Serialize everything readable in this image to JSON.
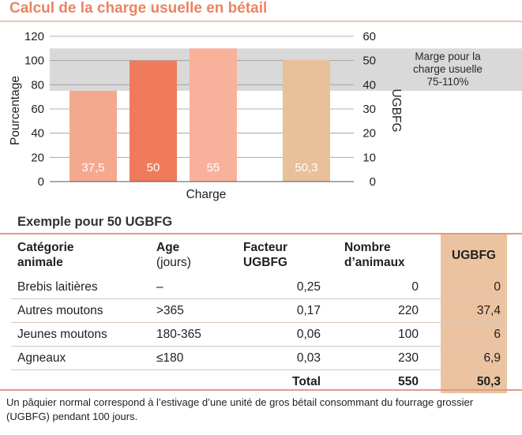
{
  "title": "Calcul de la charge usuelle en bétail",
  "chart_data": {
    "type": "bar",
    "categories": [
      "37,5",
      "50",
      "55",
      "50,3"
    ],
    "values": [
      37.5,
      50,
      55,
      50.3
    ],
    "percent_values": [
      75,
      100,
      110,
      100.6
    ],
    "bar_labels": [
      "37,5",
      "50",
      "55",
      "50,3"
    ],
    "bar_colors": [
      "#f4a98f",
      "#ef7b5c",
      "#f8b29b",
      "#e8c09a"
    ],
    "xlabel": "Charge",
    "ylabel_left": "Pourcentage",
    "ylabel_right": "UGBFG",
    "ylim_left": [
      0,
      120
    ],
    "ylim_right": [
      0,
      60
    ],
    "yticks_left": [
      "0",
      "20",
      "40",
      "60",
      "80",
      "100",
      "120"
    ],
    "yticks_right": [
      "0",
      "10",
      "20",
      "30",
      "40",
      "50",
      "60"
    ],
    "band": {
      "from_percent": 75,
      "to_percent": 110,
      "color": "#d9d9d9"
    },
    "band_label": [
      "Marge pour la",
      "charge usuelle",
      "75-110%"
    ],
    "grid": true
  },
  "table": {
    "subtitle": "Exemple pour 50 UGBFG",
    "headers": {
      "c1": [
        "Catégorie",
        "animale"
      ],
      "c2": [
        "Age",
        "(jours)"
      ],
      "c3": [
        "Facteur",
        "UGBFG"
      ],
      "c4": [
        "Nombre",
        "d’animaux"
      ],
      "c5": "UGBFG"
    },
    "rows": [
      {
        "cat": "Brebis laitières",
        "age": "–",
        "facteur": "0,25",
        "nombre": "0",
        "ugbfg": "0"
      },
      {
        "cat": "Autres moutons",
        "age": ">365",
        "facteur": "0,17",
        "nombre": "220",
        "ugbfg": "37,4"
      },
      {
        "cat": "Jeunes moutons",
        "age": "180-365",
        "facteur": "0,06",
        "nombre": "100",
        "ugbfg": "6"
      },
      {
        "cat": "Agneaux",
        "age": "≤180",
        "facteur": "0,03",
        "nombre": "230",
        "ugbfg": "6,9"
      }
    ],
    "total": {
      "label": "Total",
      "nombre": "550",
      "ugbfg": "50,3"
    }
  },
  "footnote": "Un pâquier normal correspond à l’estivage d’une unité de gros bétail consommant du fourrage grossier (UGBFG) pendant 100 jours."
}
